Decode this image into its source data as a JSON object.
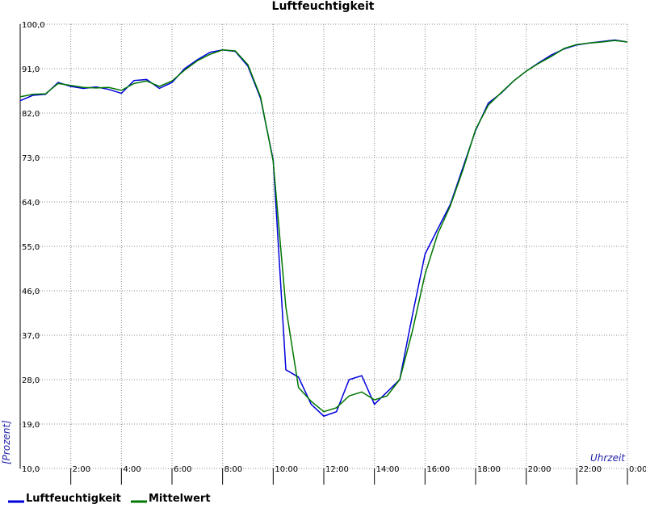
{
  "chart_data": {
    "type": "line",
    "title": "Luftfeuchtigkeit",
    "xlabel": "Uhrzeit",
    "ylabel": "[Prozent]",
    "x": [
      0,
      0.5,
      1,
      1.5,
      2,
      2.5,
      3,
      3.5,
      4,
      4.5,
      5,
      5.5,
      6,
      6.5,
      7,
      7.5,
      8,
      8.5,
      9,
      9.5,
      10,
      10.5,
      11,
      11.5,
      12,
      12.5,
      13,
      13.5,
      14,
      14.5,
      15,
      15.5,
      16,
      16.5,
      17,
      17.5,
      18,
      18.5,
      19,
      19.5,
      20,
      20.5,
      21,
      21.5,
      22,
      22.5,
      23,
      23.5,
      24
    ],
    "series": [
      {
        "name": "Luftfeuchtigkeit",
        "color": "#0000dd",
        "values": [
          84.5,
          85.6,
          85.8,
          88.2,
          87.4,
          87.0,
          87.3,
          86.8,
          86.0,
          88.6,
          88.8,
          87.0,
          88.2,
          91,
          92.8,
          94.3,
          94.8,
          94.5,
          91.5,
          85,
          72.5,
          30,
          28.5,
          23,
          20.6,
          21.5,
          28,
          28.8,
          23,
          25.5,
          28,
          41,
          53.4,
          58.5,
          63.5,
          71,
          78.5,
          84,
          86,
          88.5,
          90.5,
          92.2,
          93.8,
          95,
          95.8,
          96.2,
          96.5,
          96.8,
          96.4
        ]
      },
      {
        "name": "Mittelwert",
        "color": "#007700",
        "values": [
          85.3,
          85.8,
          85.9,
          88,
          87.6,
          87.2,
          87.1,
          87.2,
          86.6,
          88,
          88.5,
          87.4,
          88.5,
          90.7,
          92.6,
          93.9,
          94.8,
          94.6,
          91.8,
          85.3,
          72.2,
          42.7,
          26.4,
          23.6,
          21.5,
          22.3,
          24.7,
          25.5,
          23.9,
          24.7,
          28,
          37.8,
          49.3,
          57.5,
          63.2,
          70.5,
          78.7,
          83.6,
          86.1,
          88.5,
          90.5,
          92.1,
          93.5,
          95.1,
          95.9,
          96.2,
          96.4,
          96.7,
          96.4
        ]
      }
    ],
    "xlim": [
      0,
      24
    ],
    "xticks": [
      {
        "value": 2,
        "label": "2:00"
      },
      {
        "value": 4,
        "label": "4:00"
      },
      {
        "value": 6,
        "label": "6:00"
      },
      {
        "value": 8,
        "label": "8:00"
      },
      {
        "value": 10,
        "label": "10:00"
      },
      {
        "value": 12,
        "label": "12:00"
      },
      {
        "value": 14,
        "label": "14:00"
      },
      {
        "value": 16,
        "label": "16:00"
      },
      {
        "value": 18,
        "label": "18:00"
      },
      {
        "value": 20,
        "label": "20:00"
      },
      {
        "value": 22,
        "label": "22:00"
      },
      {
        "value": 24,
        "label": "0:00"
      }
    ],
    "ylim": [
      10,
      100
    ],
    "yticks": [
      {
        "value": 10,
        "label": "10,0"
      },
      {
        "value": 19,
        "label": "19,0"
      },
      {
        "value": 28,
        "label": "28,0"
      },
      {
        "value": 37,
        "label": "37,0"
      },
      {
        "value": 46,
        "label": "46,0"
      },
      {
        "value": 55,
        "label": "55,0"
      },
      {
        "value": 64,
        "label": "64,0"
      },
      {
        "value": 73,
        "label": "73,0"
      },
      {
        "value": 82,
        "label": "82,0"
      },
      {
        "value": 91,
        "label": "91,0"
      },
      {
        "value": 100,
        "label": "100,0"
      }
    ],
    "grid": true
  }
}
